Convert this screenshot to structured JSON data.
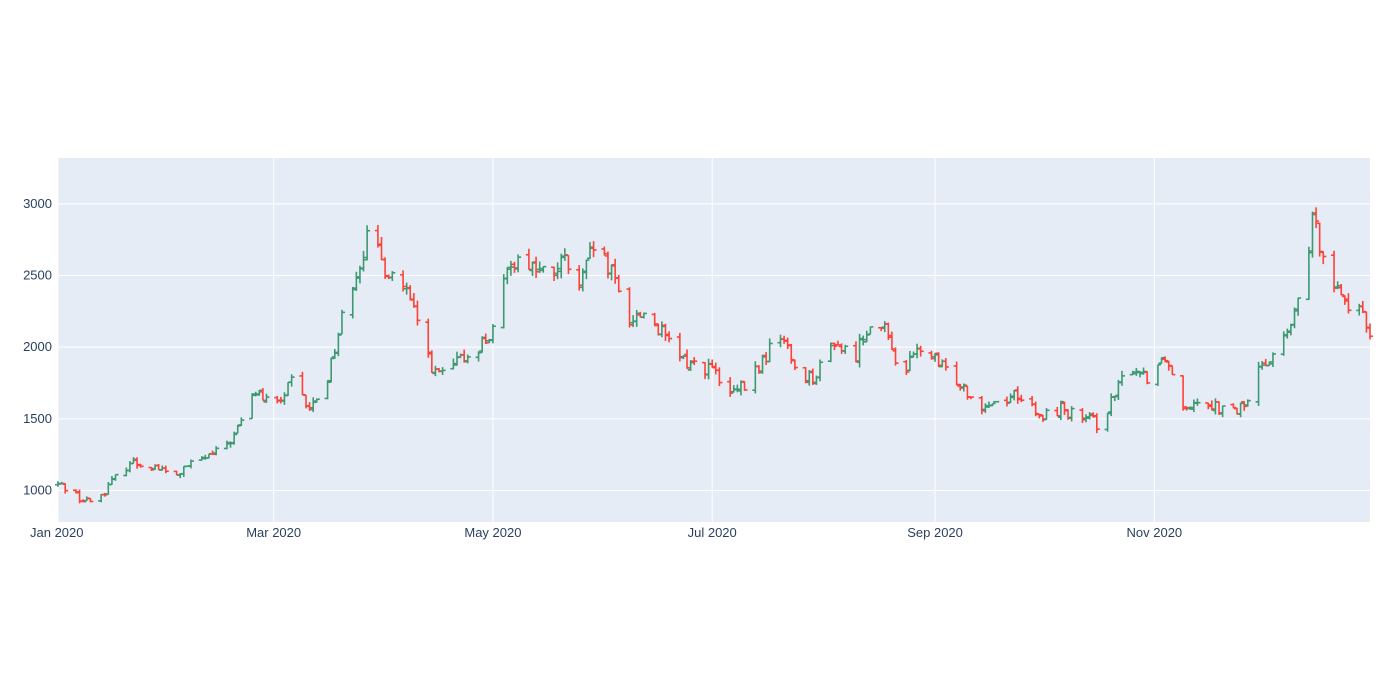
{
  "chart_data": {
    "type": "ohlc",
    "title": "",
    "xlabel": "",
    "ylabel": "",
    "x_range": [
      "2020-01-01",
      "2020-12-31"
    ],
    "ylim": [
      780,
      3320
    ],
    "x_ticks": [
      {
        "date": "2020-01-01",
        "label": "Jan 2020"
      },
      {
        "date": "2020-03-01",
        "label": "Mar 2020"
      },
      {
        "date": "2020-05-01",
        "label": "May 2020"
      },
      {
        "date": "2020-07-01",
        "label": "Jul 2020"
      },
      {
        "date": "2020-09-01",
        "label": "Sep 2020"
      },
      {
        "date": "2020-11-01",
        "label": "Nov 2020"
      }
    ],
    "y_ticks": [
      1000,
      1500,
      2000,
      2500,
      3000
    ],
    "grid": true,
    "legend": "none",
    "colors": {
      "increasing": "#3d9970",
      "decreasing": "#ff4136",
      "plot_background": "#e5ecf6",
      "gridline": "#ffffff",
      "tick_text": "#2a3f5f"
    },
    "anchors": [
      [
        "2020-01-01",
        1040
      ],
      [
        "2020-01-04",
        1020
      ],
      [
        "2020-01-08",
        925
      ],
      [
        "2020-01-12",
        940
      ],
      [
        "2020-01-16",
        1060
      ],
      [
        "2020-01-21",
        1200
      ],
      [
        "2020-01-28",
        1170
      ],
      [
        "2020-02-02",
        1090
      ],
      [
        "2020-02-08",
        1200
      ],
      [
        "2020-02-14",
        1260
      ],
      [
        "2020-02-19",
        1380
      ],
      [
        "2020-02-25",
        1700
      ],
      [
        "2020-03-01",
        1560
      ],
      [
        "2020-03-06",
        1750
      ],
      [
        "2020-03-11",
        1560
      ],
      [
        "2020-03-16",
        1800
      ],
      [
        "2020-03-22",
        2400
      ],
      [
        "2020-03-27",
        2750
      ],
      [
        "2020-04-01",
        2560
      ],
      [
        "2020-04-06",
        2430
      ],
      [
        "2020-04-11",
        2100
      ],
      [
        "2020-04-15",
        1800
      ],
      [
        "2020-04-20",
        1860
      ],
      [
        "2020-04-24",
        1950
      ],
      [
        "2020-05-01",
        2100
      ],
      [
        "2020-05-06",
        2620
      ],
      [
        "2020-05-11",
        2600
      ],
      [
        "2020-05-16",
        2480
      ],
      [
        "2020-05-21",
        2600
      ],
      [
        "2020-05-25",
        2400
      ],
      [
        "2020-05-29",
        2700
      ],
      [
        "2020-06-03",
        2500
      ],
      [
        "2020-06-08",
        2200
      ],
      [
        "2020-06-13",
        2250
      ],
      [
        "2020-06-18",
        2050
      ],
      [
        "2020-06-23",
        1900
      ],
      [
        "2020-07-01",
        1850
      ],
      [
        "2020-07-05",
        1650
      ],
      [
        "2020-07-10",
        1720
      ],
      [
        "2020-07-15",
        1900
      ],
      [
        "2020-07-20",
        2100
      ],
      [
        "2020-07-25",
        1800
      ],
      [
        "2020-07-30",
        1800
      ],
      [
        "2020-08-04",
        2050
      ],
      [
        "2020-08-09",
        1900
      ],
      [
        "2020-08-14",
        2200
      ],
      [
        "2020-08-18",
        2100
      ],
      [
        "2020-08-23",
        1820
      ],
      [
        "2020-08-28",
        2000
      ],
      [
        "2020-09-03",
        1850
      ],
      [
        "2020-09-08",
        1760
      ],
      [
        "2020-09-13",
        1600
      ],
      [
        "2020-09-18",
        1620
      ],
      [
        "2020-09-24",
        1680
      ],
      [
        "2020-09-30",
        1500
      ],
      [
        "2020-10-06",
        1580
      ],
      [
        "2020-10-11",
        1500
      ],
      [
        "2020-10-16",
        1470
      ],
      [
        "2020-10-21",
        1650
      ],
      [
        "2020-10-25",
        1880
      ],
      [
        "2020-10-30",
        1800
      ],
      [
        "2020-11-04",
        1950
      ],
      [
        "2020-11-09",
        1600
      ],
      [
        "2020-11-14",
        1650
      ],
      [
        "2020-11-19",
        1580
      ],
      [
        "2020-11-22",
        1520
      ],
      [
        "2020-11-27",
        1620
      ],
      [
        "2020-12-01",
        1900
      ],
      [
        "2020-12-06",
        2000
      ],
      [
        "2020-12-10",
        2200
      ],
      [
        "2020-12-15",
        2850
      ],
      [
        "2020-12-18",
        2700
      ],
      [
        "2020-12-22",
        2400
      ],
      [
        "2020-12-27",
        2250
      ],
      [
        "2020-12-31",
        2120
      ]
    ]
  }
}
